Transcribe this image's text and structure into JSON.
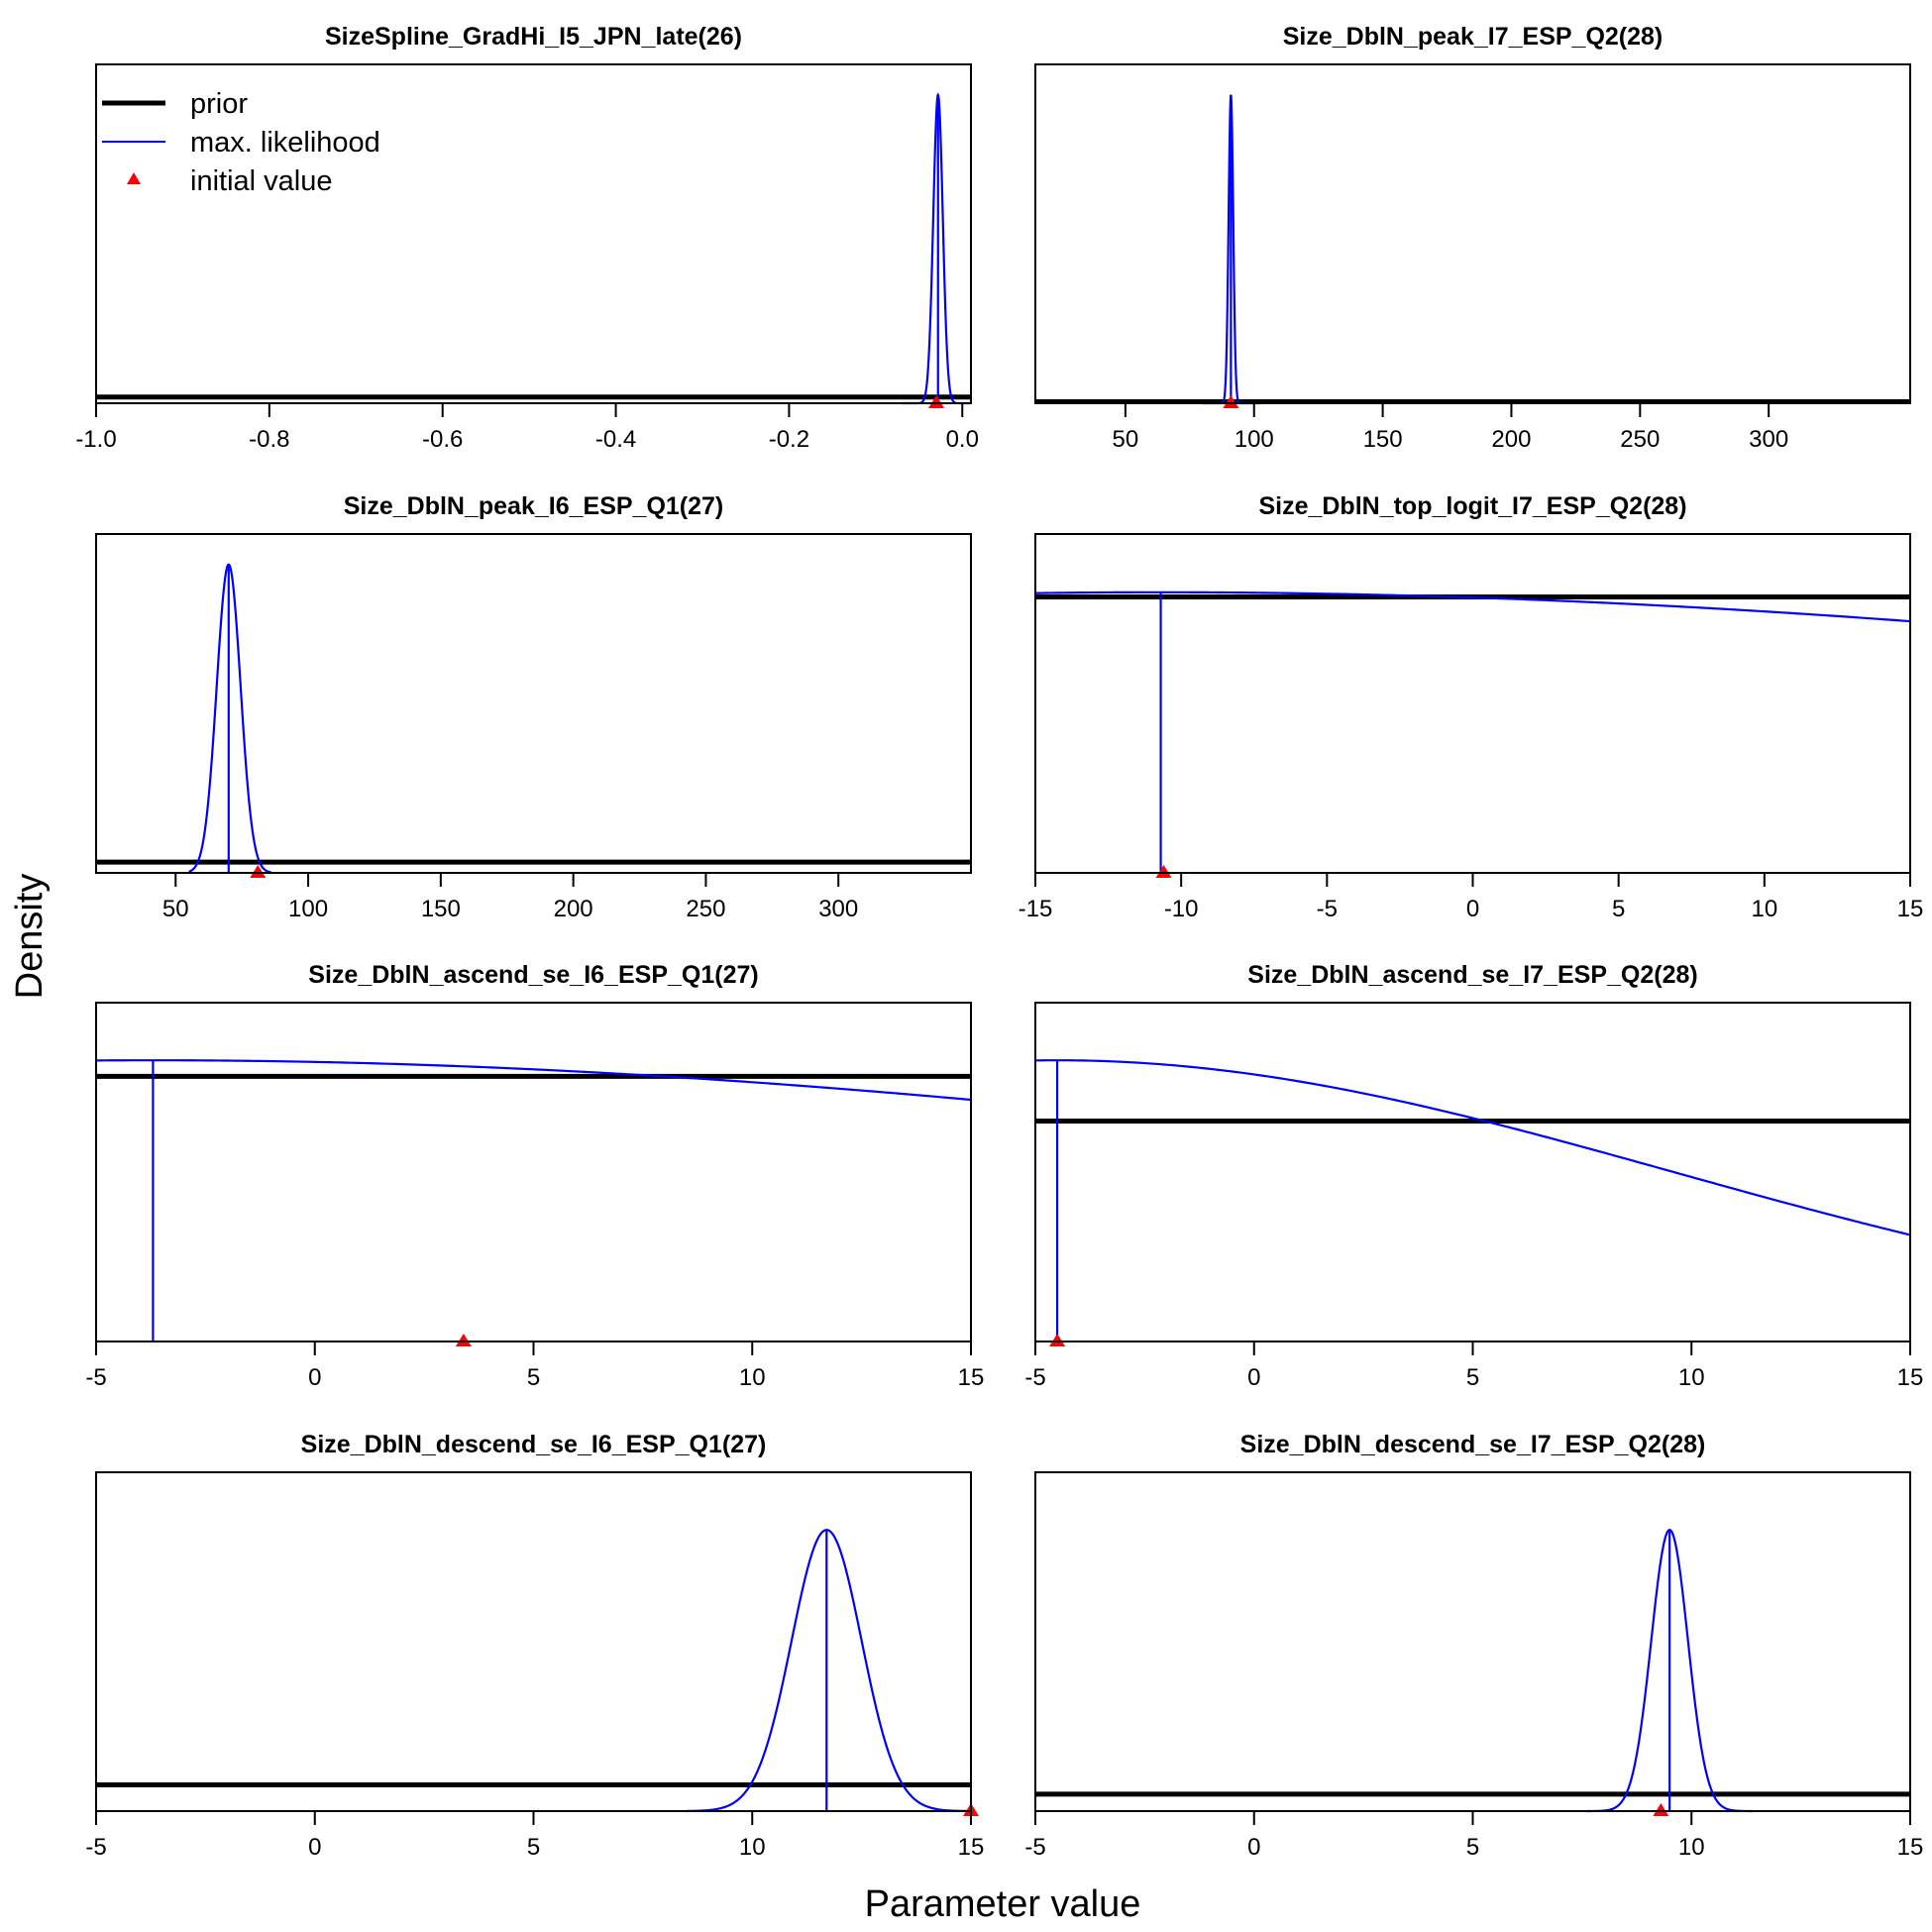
{
  "figure": {
    "ylabel": "Density",
    "xlabel": "Parameter value"
  },
  "legend": {
    "position": "top-left of first panel",
    "items": [
      {
        "label": "prior",
        "kind": "thick-line",
        "color": "#000000"
      },
      {
        "label": "max. likelihood",
        "kind": "line",
        "color": "#0000ff"
      },
      {
        "label": "initial value",
        "kind": "triangle",
        "color": "#ff0000"
      }
    ]
  },
  "colors": {
    "prior": "#000000",
    "mle": "#0000ff",
    "init": "#ff0000"
  },
  "chart_data": [
    {
      "type": "line",
      "title": "SizeSpline_GradHi_I5_JPN_late(26)",
      "xlim": [
        -1.0,
        0.01
      ],
      "ticks": [
        -1.0,
        -0.8,
        -0.6,
        -0.4,
        -0.2,
        0.0
      ],
      "tick_labels": [
        "-1.0",
        "-0.8",
        "-0.6",
        "-0.4",
        "-0.2",
        "0.0"
      ],
      "prior_level": 0.02,
      "mle": {
        "mean": -0.028,
        "sd": 0.0055,
        "shape": "normal",
        "tail_from": -0.07,
        "tail_to": 0.012,
        "scale": 1.0
      },
      "mle_vline": -0.028,
      "initial_value": -0.03
    },
    {
      "type": "line",
      "title": "Size_DblN_peak_I7_ESP_Q2(28)",
      "xlim": [
        15,
        355
      ],
      "ticks": [
        50,
        100,
        150,
        200,
        250,
        300
      ],
      "tick_labels": [
        "50",
        "100",
        "150",
        "200",
        "250",
        "300"
      ],
      "prior_level": 0.005,
      "mle": {
        "mean": 91,
        "sd": 0.9,
        "shape": "normal",
        "tail_from": 80,
        "tail_to": 102,
        "scale": 1.0
      },
      "mle_vline": 91,
      "initial_value": 91
    },
    {
      "type": "line",
      "title": "Size_DblN_peak_I6_ESP_Q1(27)",
      "xlim": [
        20,
        350
      ],
      "ticks": [
        50,
        100,
        150,
        200,
        250,
        300
      ],
      "tick_labels": [
        "50",
        "100",
        "150",
        "200",
        "250",
        "300"
      ],
      "prior_level": 0.035,
      "mle": {
        "mean": 70,
        "sd": 4.5,
        "shape": "normal",
        "tail_from": 55,
        "tail_to": 86,
        "scale": 1.0
      },
      "mle_vline": 70,
      "initial_value": 81
    },
    {
      "type": "line",
      "title": "Size_DblN_top_logit_I7_ESP_Q2(28)",
      "xlim": [
        -15,
        15
      ],
      "ticks": [
        -15,
        -10,
        -5,
        0,
        5,
        10,
        15
      ],
      "tick_labels": [
        "-15",
        "-10",
        "-5",
        "0",
        "5",
        "10",
        "15"
      ],
      "prior_level": 0.895,
      "mle": {
        "mean": -10.7,
        "sd": 55,
        "shape": "normal",
        "tail_from": -15,
        "tail_to": 15,
        "scale": 0.91
      },
      "mle_vline": -10.7,
      "initial_value": -10.6
    },
    {
      "type": "line",
      "title": "Size_DblN_ascend_se_I6_ESP_Q1(27)",
      "xlim": [
        -5,
        15
      ],
      "ticks": [
        -5,
        0,
        5,
        10,
        15
      ],
      "tick_labels": [
        "-5",
        "0",
        "5",
        "10",
        "15"
      ],
      "prior_level": 0.86,
      "mle": {
        "mean": -3.7,
        "sd": 34,
        "shape": "normal",
        "tail_from": -5,
        "tail_to": 15,
        "scale": 0.912
      },
      "mle_vline": -3.7,
      "initial_value": 3.4
    },
    {
      "type": "line",
      "title": "Size_DblN_ascend_se_I7_ESP_Q2(28)",
      "xlim": [
        -5,
        15
      ],
      "ticks": [
        -5,
        0,
        5,
        10,
        15
      ],
      "tick_labels": [
        "-5",
        "0",
        "5",
        "10",
        "15"
      ],
      "prior_level": 0.715,
      "mle": {
        "mean": -4.5,
        "sd": 14,
        "shape": "normal",
        "tail_from": -5,
        "tail_to": 15,
        "scale": 0.912
      },
      "mle_vline": -4.5,
      "initial_value": -4.5
    },
    {
      "type": "line",
      "title": "Size_DblN_descend_se_I6_ESP_Q1(27)",
      "xlim": [
        -5,
        15
      ],
      "ticks": [
        -5,
        0,
        5,
        10,
        15
      ],
      "tick_labels": [
        "-5",
        "0",
        "5",
        "10",
        "15"
      ],
      "prior_level": 0.085,
      "mle": {
        "mean": 11.7,
        "sd": 0.8,
        "shape": "normal",
        "tail_from": 8.5,
        "tail_to": 15,
        "scale": 0.912
      },
      "mle_vline": 11.7,
      "initial_value": 15
    },
    {
      "type": "line",
      "title": "Size_DblN_descend_se_I7_ESP_Q2(28)",
      "xlim": [
        -5,
        15
      ],
      "ticks": [
        -5,
        0,
        5,
        10,
        15
      ],
      "tick_labels": [
        "-5",
        "0",
        "5",
        "10",
        "15"
      ],
      "prior_level": 0.055,
      "mle": {
        "mean": 9.5,
        "sd": 0.42,
        "shape": "normal",
        "tail_from": 7.6,
        "tail_to": 11.4,
        "scale": 0.912
      },
      "mle_vline": 9.5,
      "initial_value": 9.3
    }
  ]
}
